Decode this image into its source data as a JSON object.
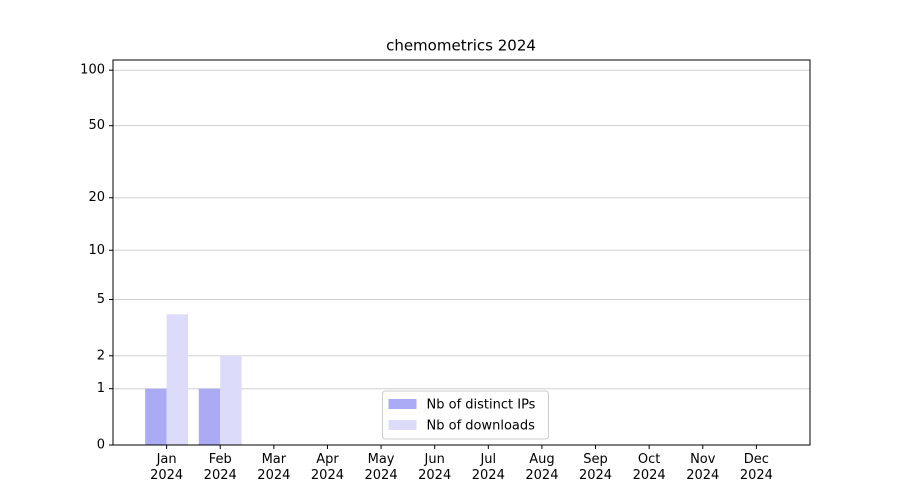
{
  "chart_data": {
    "type": "bar",
    "title": "chemometrics 2024",
    "categories": [
      "Jan\n2024",
      "Feb\n2024",
      "Mar\n2024",
      "Apr\n2024",
      "May\n2024",
      "Jun\n2024",
      "Jul\n2024",
      "Aug\n2024",
      "Sep\n2024",
      "Oct\n2024",
      "Nov\n2024",
      "Dec\n2024"
    ],
    "series": [
      {
        "name": "Nb of distinct IPs",
        "color": "#aaaaf5",
        "values": [
          1,
          1,
          0,
          0,
          0,
          0,
          0,
          0,
          0,
          0,
          0,
          0
        ]
      },
      {
        "name": "Nb of downloads",
        "color": "#dcdcfa",
        "values": [
          4,
          2,
          0,
          0,
          0,
          0,
          0,
          0,
          0,
          0,
          0,
          0
        ]
      }
    ],
    "yscale": "log1p",
    "ylim": [
      0,
      113.5
    ],
    "yticks": [
      0,
      1,
      2,
      5,
      10,
      20,
      50,
      100
    ],
    "grid": true,
    "legend": "lower center"
  }
}
